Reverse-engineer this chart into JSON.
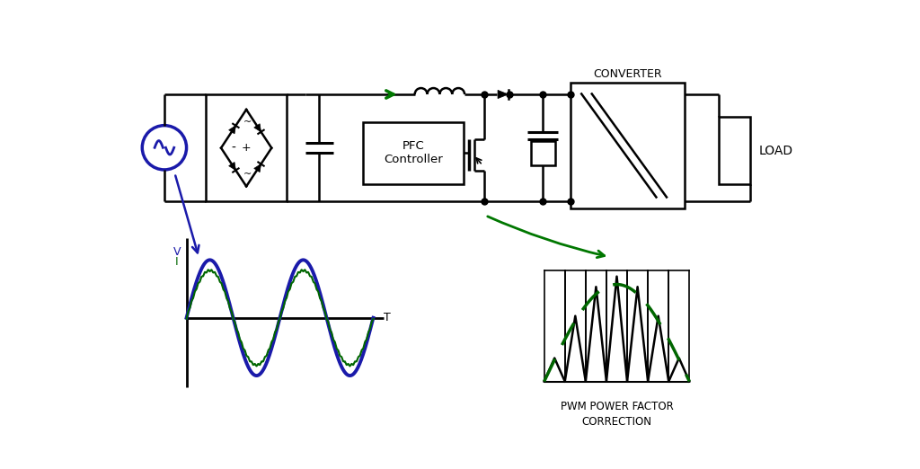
{
  "bg_color": "#ffffff",
  "circuit_color": "#000000",
  "blue_color": "#1a1aaa",
  "green_color": "#006600",
  "green_arrow_color": "#007700",
  "title_text": "PWM POWER FACTOR\nCORRECTION",
  "load_text": "LOAD",
  "converter_text": "CONVERTER",
  "pfc_text": "PFC\nController",
  "v_label": "V",
  "i_label": "I",
  "t_label": "T"
}
